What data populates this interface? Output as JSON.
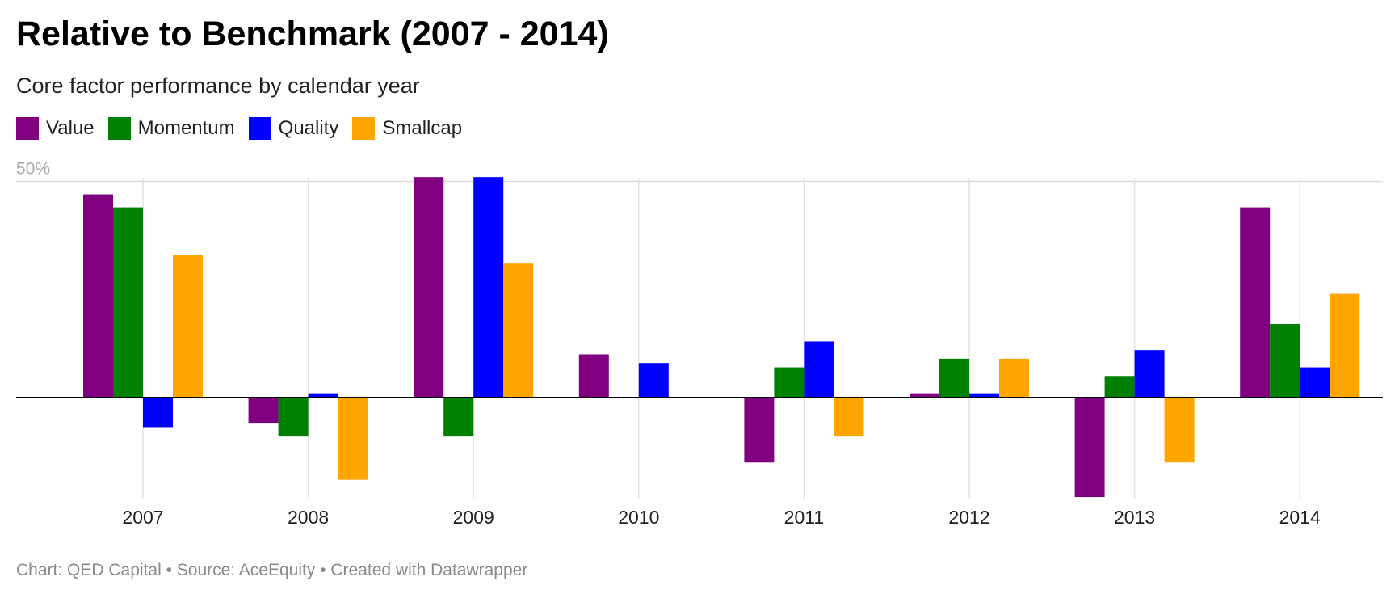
{
  "title": "Relative to Benchmark (2007 - 2014)",
  "subtitle": "Core factor performance by calendar year",
  "footer": "Chart: QED Capital • Source: AceEquity • Created with Datawrapper",
  "chart_data": {
    "type": "bar",
    "title": "Relative to Benchmark (2007 - 2014)",
    "subtitle": "Core factor performance by calendar year",
    "categories": [
      "2007",
      "2008",
      "2009",
      "2010",
      "2011",
      "2012",
      "2013",
      "2014"
    ],
    "series": [
      {
        "name": "Value",
        "color": "#800080",
        "values": [
          47,
          -6,
          51,
          10,
          -15,
          1,
          -23,
          44
        ]
      },
      {
        "name": "Momentum",
        "color": "#008000",
        "values": [
          44,
          -9,
          -9,
          0,
          7,
          9,
          5,
          17
        ]
      },
      {
        "name": "Quality",
        "color": "#0000ff",
        "values": [
          -7,
          1,
          51,
          8,
          13,
          1,
          11,
          7
        ]
      },
      {
        "name": "Smallcap",
        "color": "#ffa500",
        "values": [
          33,
          -19,
          31,
          0,
          -9,
          9,
          -15,
          24
        ]
      }
    ],
    "y_tick_labels": [
      {
        "value": 50,
        "label": "50%"
      }
    ],
    "ylim": [
      -23,
      51
    ],
    "grid": true,
    "legend_position": "top-left"
  }
}
